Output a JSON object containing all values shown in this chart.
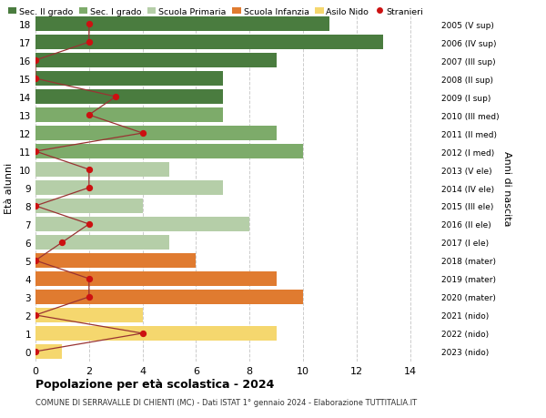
{
  "ages": [
    18,
    17,
    16,
    15,
    14,
    13,
    12,
    11,
    10,
    9,
    8,
    7,
    6,
    5,
    4,
    3,
    2,
    1,
    0
  ],
  "right_labels": [
    "2005 (V sup)",
    "2006 (IV sup)",
    "2007 (III sup)",
    "2008 (II sup)",
    "2009 (I sup)",
    "2010 (III med)",
    "2011 (II med)",
    "2012 (I med)",
    "2013 (V ele)",
    "2014 (IV ele)",
    "2015 (III ele)",
    "2016 (II ele)",
    "2017 (I ele)",
    "2018 (mater)",
    "2019 (mater)",
    "2020 (mater)",
    "2021 (nido)",
    "2022 (nido)",
    "2023 (nido)"
  ],
  "bar_values": [
    11,
    13,
    9,
    7,
    7,
    7,
    9,
    10,
    5,
    7,
    4,
    8,
    5,
    6,
    9,
    10,
    4,
    9,
    1
  ],
  "bar_colors": [
    "#4a7c3f",
    "#4a7c3f",
    "#4a7c3f",
    "#4a7c3f",
    "#4a7c3f",
    "#7dab6a",
    "#7dab6a",
    "#7dab6a",
    "#b5cea8",
    "#b5cea8",
    "#b5cea8",
    "#b5cea8",
    "#b5cea8",
    "#e07b30",
    "#e07b30",
    "#e07b30",
    "#f5d76e",
    "#f5d76e",
    "#f5d76e"
  ],
  "stranieri_values": [
    2,
    2,
    0,
    0,
    3,
    2,
    4,
    0,
    2,
    2,
    0,
    2,
    1,
    0,
    2,
    2,
    0,
    4,
    0
  ],
  "legend_labels": [
    "Sec. II grado",
    "Sec. I grado",
    "Scuola Primaria",
    "Scuola Infanzia",
    "Asilo Nido",
    "Stranieri"
  ],
  "legend_colors": [
    "#4a7c3f",
    "#7dab6a",
    "#b5cea8",
    "#e07b30",
    "#f5d76e",
    "#cc1111"
  ],
  "xlabel_vals": [
    0,
    2,
    4,
    6,
    8,
    10,
    12,
    14
  ],
  "xlim": [
    0,
    15
  ],
  "ylim": [
    -0.55,
    18.55
  ],
  "ylabel_left": "Età alunni",
  "ylabel_right": "Anni di nascita",
  "title": "Popolazione per età scolastica - 2024",
  "subtitle": "COMUNE DI SERRAVALLE DI CHIENTI (MC) - Dati ISTAT 1° gennaio 2024 - Elaborazione TUTTITALIA.IT",
  "bg_color": "#ffffff",
  "grid_color": "#cccccc",
  "bar_height": 0.82,
  "stranieri_line_color": "#993333",
  "stranieri_dot_color": "#cc1111"
}
